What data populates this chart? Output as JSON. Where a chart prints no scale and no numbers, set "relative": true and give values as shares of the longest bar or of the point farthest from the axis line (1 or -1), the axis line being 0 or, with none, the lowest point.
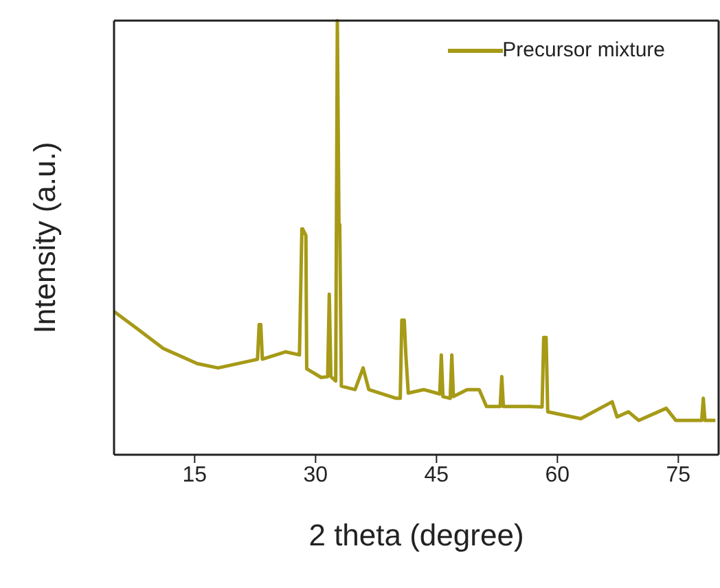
{
  "chart_data": {
    "type": "line",
    "xlabel": "2 theta (degree)",
    "ylabel": "Intensity (a.u.)",
    "relative": true,
    "xlim": [
      5,
      80
    ],
    "xticks": [
      15,
      30,
      45,
      60,
      75
    ],
    "legend": "top right",
    "marker": "none",
    "line_style": "solid",
    "series": [
      {
        "name": "Precursor mixture",
        "color": "#a69a17",
        "x": [
          5.0,
          7.9,
          11.1,
          15.3,
          17.9,
          22.1,
          22.8,
          23.0,
          23.2,
          23.4,
          26.3,
          28.0,
          28.3,
          28.4,
          28.8,
          28.9,
          30.7,
          31.5,
          31.7,
          31.9,
          32.5,
          32.7,
          32.9,
          33.0,
          33.2,
          34.9,
          35.9,
          36.6,
          40.0,
          40.5,
          40.7,
          41.0,
          41.2,
          41.5,
          43.4,
          45.4,
          45.6,
          45.8,
          46.7,
          46.9,
          47.1,
          48.8,
          50.3,
          51.2,
          52.9,
          53.1,
          53.3,
          56.6,
          58.1,
          58.3,
          58.6,
          58.8,
          62.9,
          66.8,
          67.4,
          68.8,
          70.1,
          73.5,
          74.7,
          77.9,
          78.1,
          78.3,
          79.6
        ],
        "values": [
          0.33,
          0.29,
          0.245,
          0.21,
          0.2,
          0.217,
          0.22,
          0.3,
          0.3,
          0.22,
          0.237,
          0.23,
          0.52,
          0.52,
          0.505,
          0.198,
          0.178,
          0.18,
          0.37,
          0.18,
          0.17,
          1.0,
          0.53,
          0.53,
          0.158,
          0.15,
          0.2,
          0.15,
          0.13,
          0.13,
          0.31,
          0.31,
          0.23,
          0.142,
          0.15,
          0.14,
          0.23,
          0.134,
          0.13,
          0.23,
          0.134,
          0.15,
          0.15,
          0.111,
          0.111,
          0.18,
          0.111,
          0.111,
          0.11,
          0.27,
          0.27,
          0.099,
          0.083,
          0.122,
          0.087,
          0.099,
          0.079,
          0.107,
          0.079,
          0.079,
          0.13,
          0.079,
          0.079
        ]
      }
    ]
  }
}
